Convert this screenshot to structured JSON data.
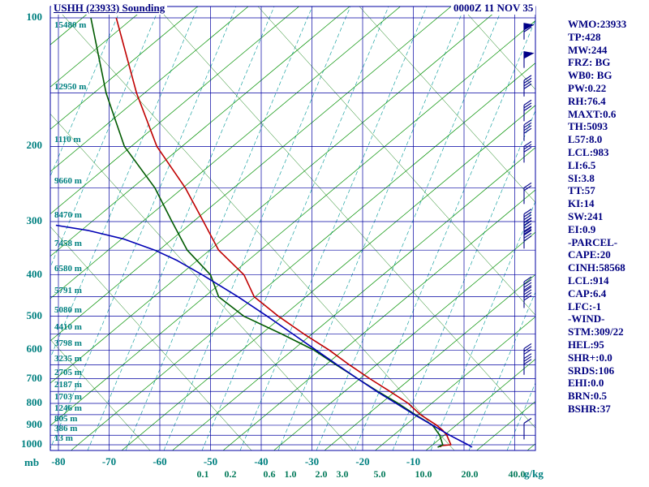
{
  "header": {
    "title": "USHH (23933) Sounding",
    "datetime": "0000Z 11 NOV 35"
  },
  "stats_panel": {
    "items": [
      "WMO:23933",
      "TP:428",
      "MW:244",
      "FRZ: BG",
      "WB0: BG",
      "PW:0.22",
      "RH:76.4",
      "MAXT:0.6",
      "TH:5093",
      "L57:8.0",
      "LCL:983",
      "LI:6.5",
      "SI:3.8",
      "TT:57",
      "KI:14",
      "SW:241",
      "EI:0.9",
      "-PARCEL-",
      "CAPE:20",
      "CINH:58568",
      "LCL:914",
      "CAP:6.4",
      "LFC:-1",
      "-WIND-",
      "STM:309/22",
      "HEL:95",
      "SHR+:0.0",
      "SRDS:106",
      "EHI:0.0",
      "BRN:0.5",
      "BSHR:37"
    ]
  },
  "axes": {
    "pressure_unit": "mb",
    "pressure_ticks": [
      100,
      200,
      300,
      400,
      500,
      600,
      700,
      800,
      900,
      1000
    ],
    "temp_ticks": [
      -80,
      -70,
      -60,
      -50,
      -40,
      -30,
      -20,
      -10
    ],
    "mixing_ratio_ticks": [
      "0.1",
      "0.2",
      "0.6",
      "1.0",
      "2.0",
      "3.0",
      "5.0",
      "10.0",
      "20.0",
      "40.0"
    ],
    "mixing_ratio_x": [
      250,
      284,
      332,
      358,
      396,
      422,
      468,
      522,
      579,
      637
    ],
    "mixing_ratio_unit": "g/kg"
  },
  "height_labels": [
    {
      "p": 100,
      "label": "15480 m"
    },
    {
      "p": 150,
      "label": "12950 m"
    },
    {
      "p": 200,
      "label": "1110 m"
    },
    {
      "p": 250,
      "label": "9660 m"
    },
    {
      "p": 300,
      "label": "8470 m"
    },
    {
      "p": 350,
      "label": "7458 m"
    },
    {
      "p": 400,
      "label": "6580 m"
    },
    {
      "p": 450,
      "label": "5791 m"
    },
    {
      "p": 500,
      "label": "5080 m"
    },
    {
      "p": 550,
      "label": "4410 m"
    },
    {
      "p": 600,
      "label": "3798 m"
    },
    {
      "p": 650,
      "label": "3235 m"
    },
    {
      "p": 700,
      "label": "2705 m"
    },
    {
      "p": 750,
      "label": "2187 m"
    },
    {
      "p": 800,
      "label": "1703 m"
    },
    {
      "p": 850,
      "label": "1246 m"
    },
    {
      "p": 900,
      "label": "805 m"
    },
    {
      "p": 950,
      "label": "386 m"
    },
    {
      "p": 1000,
      "label": "13 m"
    }
  ],
  "chart_data": {
    "type": "line",
    "title": "USHH (23933) Sounding",
    "pressure_axis": {
      "unit": "mb",
      "range": [
        100,
        1030
      ],
      "scale": "log"
    },
    "temperature_axis": {
      "unit": "C",
      "ticks": [
        -80,
        -70,
        -60,
        -50,
        -40,
        -30,
        -20,
        -10
      ]
    },
    "series": [
      {
        "name": "temperature",
        "color": "#c00000",
        "points": [
          [
            1013,
            -4.6
          ],
          [
            1005,
            -4.6
          ],
          [
            1000,
            -2.6
          ],
          [
            975,
            -3.0
          ],
          [
            950,
            -3.4
          ],
          [
            925,
            -4.2
          ],
          [
            900,
            -5.4
          ],
          [
            850,
            -8.6
          ],
          [
            800,
            -11.0
          ],
          [
            750,
            -14.6
          ],
          [
            700,
            -18.6
          ],
          [
            650,
            -22.6
          ],
          [
            600,
            -26.6
          ],
          [
            550,
            -31.6
          ],
          [
            500,
            -36.6
          ],
          [
            450,
            -41.4
          ],
          [
            400,
            -43.4
          ],
          [
            350,
            -48.4
          ],
          [
            300,
            -51.4
          ],
          [
            250,
            -55.0
          ],
          [
            200,
            -60.6
          ],
          [
            150,
            -64.6
          ],
          [
            100,
            -68.6
          ]
        ]
      },
      {
        "name": "dewpoint",
        "color": "#005a00",
        "points": [
          [
            1013,
            -5.2
          ],
          [
            1000,
            -4.2
          ],
          [
            950,
            -4.8
          ],
          [
            900,
            -6.2
          ],
          [
            850,
            -9.6
          ],
          [
            800,
            -13.0
          ],
          [
            750,
            -17.0
          ],
          [
            700,
            -21.0
          ],
          [
            650,
            -25.2
          ],
          [
            600,
            -29.6
          ],
          [
            550,
            -36.0
          ],
          [
            500,
            -43.4
          ],
          [
            450,
            -48.4
          ],
          [
            400,
            -50.0
          ],
          [
            350,
            -54.6
          ],
          [
            300,
            -57.6
          ],
          [
            250,
            -61.0
          ],
          [
            200,
            -67.0
          ],
          [
            150,
            -70.6
          ],
          [
            100,
            -73.6
          ]
        ]
      },
      {
        "name": "parcel",
        "color": "#0000b4",
        "points": [
          [
            1013,
            1.6
          ],
          [
            1000,
            0.8
          ],
          [
            950,
            -2.8
          ],
          [
            900,
            -6.2
          ],
          [
            850,
            -9.8
          ],
          [
            800,
            -13.4
          ],
          [
            750,
            -17.2
          ],
          [
            700,
            -21.0
          ],
          [
            650,
            -25.0
          ],
          [
            600,
            -29.2
          ],
          [
            550,
            -33.8
          ],
          [
            500,
            -38.8
          ],
          [
            450,
            -44.6
          ],
          [
            400,
            -51.6
          ],
          [
            370,
            -56.6
          ],
          [
            350,
            -61.0
          ],
          [
            330,
            -67.0
          ],
          [
            315,
            -74.0
          ],
          [
            306,
            -80.5
          ]
        ]
      }
    ],
    "wind_barbs": [
      {
        "p": 103,
        "flags": 1,
        "ticks": 2
      },
      {
        "p": 120,
        "flags": 1,
        "ticks": 1
      },
      {
        "p": 140,
        "flags": 0,
        "ticks": 4
      },
      {
        "p": 160,
        "flags": 0,
        "ticks": 3
      },
      {
        "p": 178,
        "flags": 0,
        "ticks": 4
      },
      {
        "p": 200,
        "flags": 0,
        "ticks": 3
      },
      {
        "p": 250,
        "flags": 0,
        "ticks": 2
      },
      {
        "p": 288,
        "flags": 0,
        "ticks": 5
      },
      {
        "p": 302,
        "flags": 0,
        "ticks": 5
      },
      {
        "p": 318,
        "flags": 0,
        "ticks": 4
      },
      {
        "p": 415,
        "flags": 0,
        "ticks": 4
      },
      {
        "p": 438,
        "flags": 0,
        "ticks": 4
      },
      {
        "p": 595,
        "flags": 0,
        "ticks": 3
      },
      {
        "p": 628,
        "flags": 0,
        "ticks": 3
      },
      {
        "p": 890,
        "flags": 0,
        "ticks": 1
      }
    ]
  },
  "colors": {
    "text_navy": "#000080",
    "tick_teal": "#008080",
    "mixing_green": "#007858",
    "grid_blue": "#0000a0",
    "isotherm_green": "#009000",
    "adiabat_green": "#007800",
    "moist_teal": "#009898",
    "temperature": "#c00000",
    "dewpoint": "#005a00",
    "parcel": "#0000b4",
    "barb": "#000088"
  }
}
